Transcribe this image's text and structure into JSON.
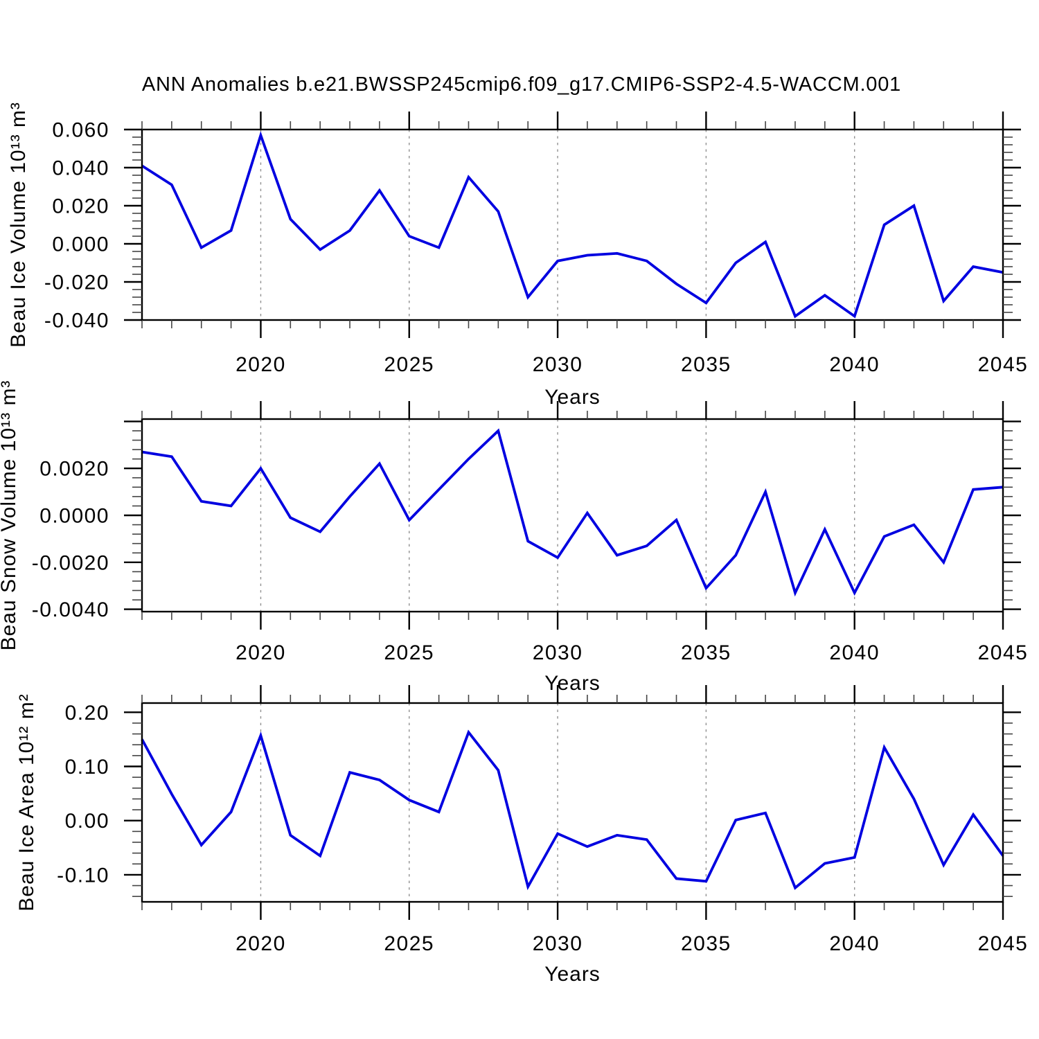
{
  "title": "ANN Anomalies b.e21.BWSSP245cmip6.f09_g17.CMIP6-SSP2-4.5-WACCM.001",
  "xlabel": "Years",
  "line_color": "#0000e0",
  "grid_color": "#909090",
  "frame_color": "#000000",
  "years": [
    2016,
    2017,
    2018,
    2019,
    2020,
    2021,
    2022,
    2023,
    2024,
    2025,
    2026,
    2027,
    2028,
    2029,
    2030,
    2031,
    2032,
    2033,
    2034,
    2035,
    2036,
    2037,
    2038,
    2039,
    2040,
    2041,
    2042,
    2043,
    2044,
    2045
  ],
  "x_major_ticks": [
    2020,
    2025,
    2030,
    2035,
    2040,
    2045
  ],
  "x_major_labels": [
    "2020",
    "2025",
    "2030",
    "2035",
    "2040",
    "2045"
  ],
  "chart_data": [
    {
      "type": "line",
      "name": "beau-ice-volume",
      "ylabel": "Beau Ice Volume 10¹³ m³",
      "ylim": [
        -0.04,
        0.06
      ],
      "yminor_step": 0.004,
      "yticks": [
        {
          "v": 0.06,
          "label": "0.060"
        },
        {
          "v": 0.04,
          "label": "0.040"
        },
        {
          "v": 0.02,
          "label": "0.020"
        },
        {
          "v": 0.0,
          "label": "0.000"
        },
        {
          "v": -0.02,
          "label": "-0.020"
        },
        {
          "v": -0.04,
          "label": "-0.040"
        }
      ],
      "values": [
        0.041,
        0.031,
        -0.002,
        0.007,
        0.057,
        0.013,
        -0.003,
        0.007,
        0.028,
        0.004,
        -0.002,
        0.035,
        0.017,
        -0.028,
        -0.009,
        -0.006,
        -0.005,
        -0.009,
        -0.021,
        -0.031,
        -0.01,
        0.001,
        -0.038,
        -0.027,
        -0.038,
        0.01,
        0.02,
        -0.03,
        -0.012,
        -0.015
      ]
    },
    {
      "type": "line",
      "name": "beau-snow-volume",
      "ylabel": "Beau Snow Volume 10¹³ m³",
      "ylim": [
        -0.0041,
        0.0041
      ],
      "yminor_step": 0.0004,
      "yticks": [
        {
          "v": 0.004,
          "label": ""
        },
        {
          "v": 0.002,
          "label": "0.0020"
        },
        {
          "v": 0.0,
          "label": "0.0000"
        },
        {
          "v": -0.002,
          "label": "-0.0020"
        },
        {
          "v": -0.004,
          "label": "-0.0040"
        }
      ],
      "values": [
        0.0027,
        0.0025,
        0.0006,
        0.0004,
        0.002,
        -0.0001,
        -0.0007,
        0.0008,
        0.0022,
        -0.0002,
        0.0011,
        0.0024,
        0.0036,
        -0.0011,
        -0.0018,
        0.0001,
        -0.0017,
        -0.0013,
        -0.0002,
        -0.0031,
        -0.0017,
        0.001,
        -0.0033,
        -0.0006,
        -0.0033,
        -0.0009,
        -0.0004,
        -0.002,
        0.0011,
        0.0012
      ]
    },
    {
      "type": "line",
      "name": "beau-ice-area",
      "ylabel": "Beau Ice Area 10¹² m²",
      "ylim": [
        -0.15,
        0.217
      ],
      "yminor_step": 0.02,
      "yticks": [
        {
          "v": 0.2,
          "label": "0.20"
        },
        {
          "v": 0.1,
          "label": "0.10"
        },
        {
          "v": 0.0,
          "label": "0.00"
        },
        {
          "v": -0.1,
          "label": "-0.10"
        }
      ],
      "values": [
        0.15,
        0.049,
        -0.045,
        0.016,
        0.157,
        -0.027,
        -0.065,
        0.089,
        0.075,
        0.038,
        0.016,
        0.163,
        0.093,
        -0.122,
        -0.024,
        -0.048,
        -0.027,
        -0.035,
        -0.107,
        -0.112,
        0.001,
        0.014,
        -0.124,
        -0.079,
        -0.068,
        0.135,
        0.04,
        -0.082,
        0.011,
        -0.065
      ]
    }
  ]
}
